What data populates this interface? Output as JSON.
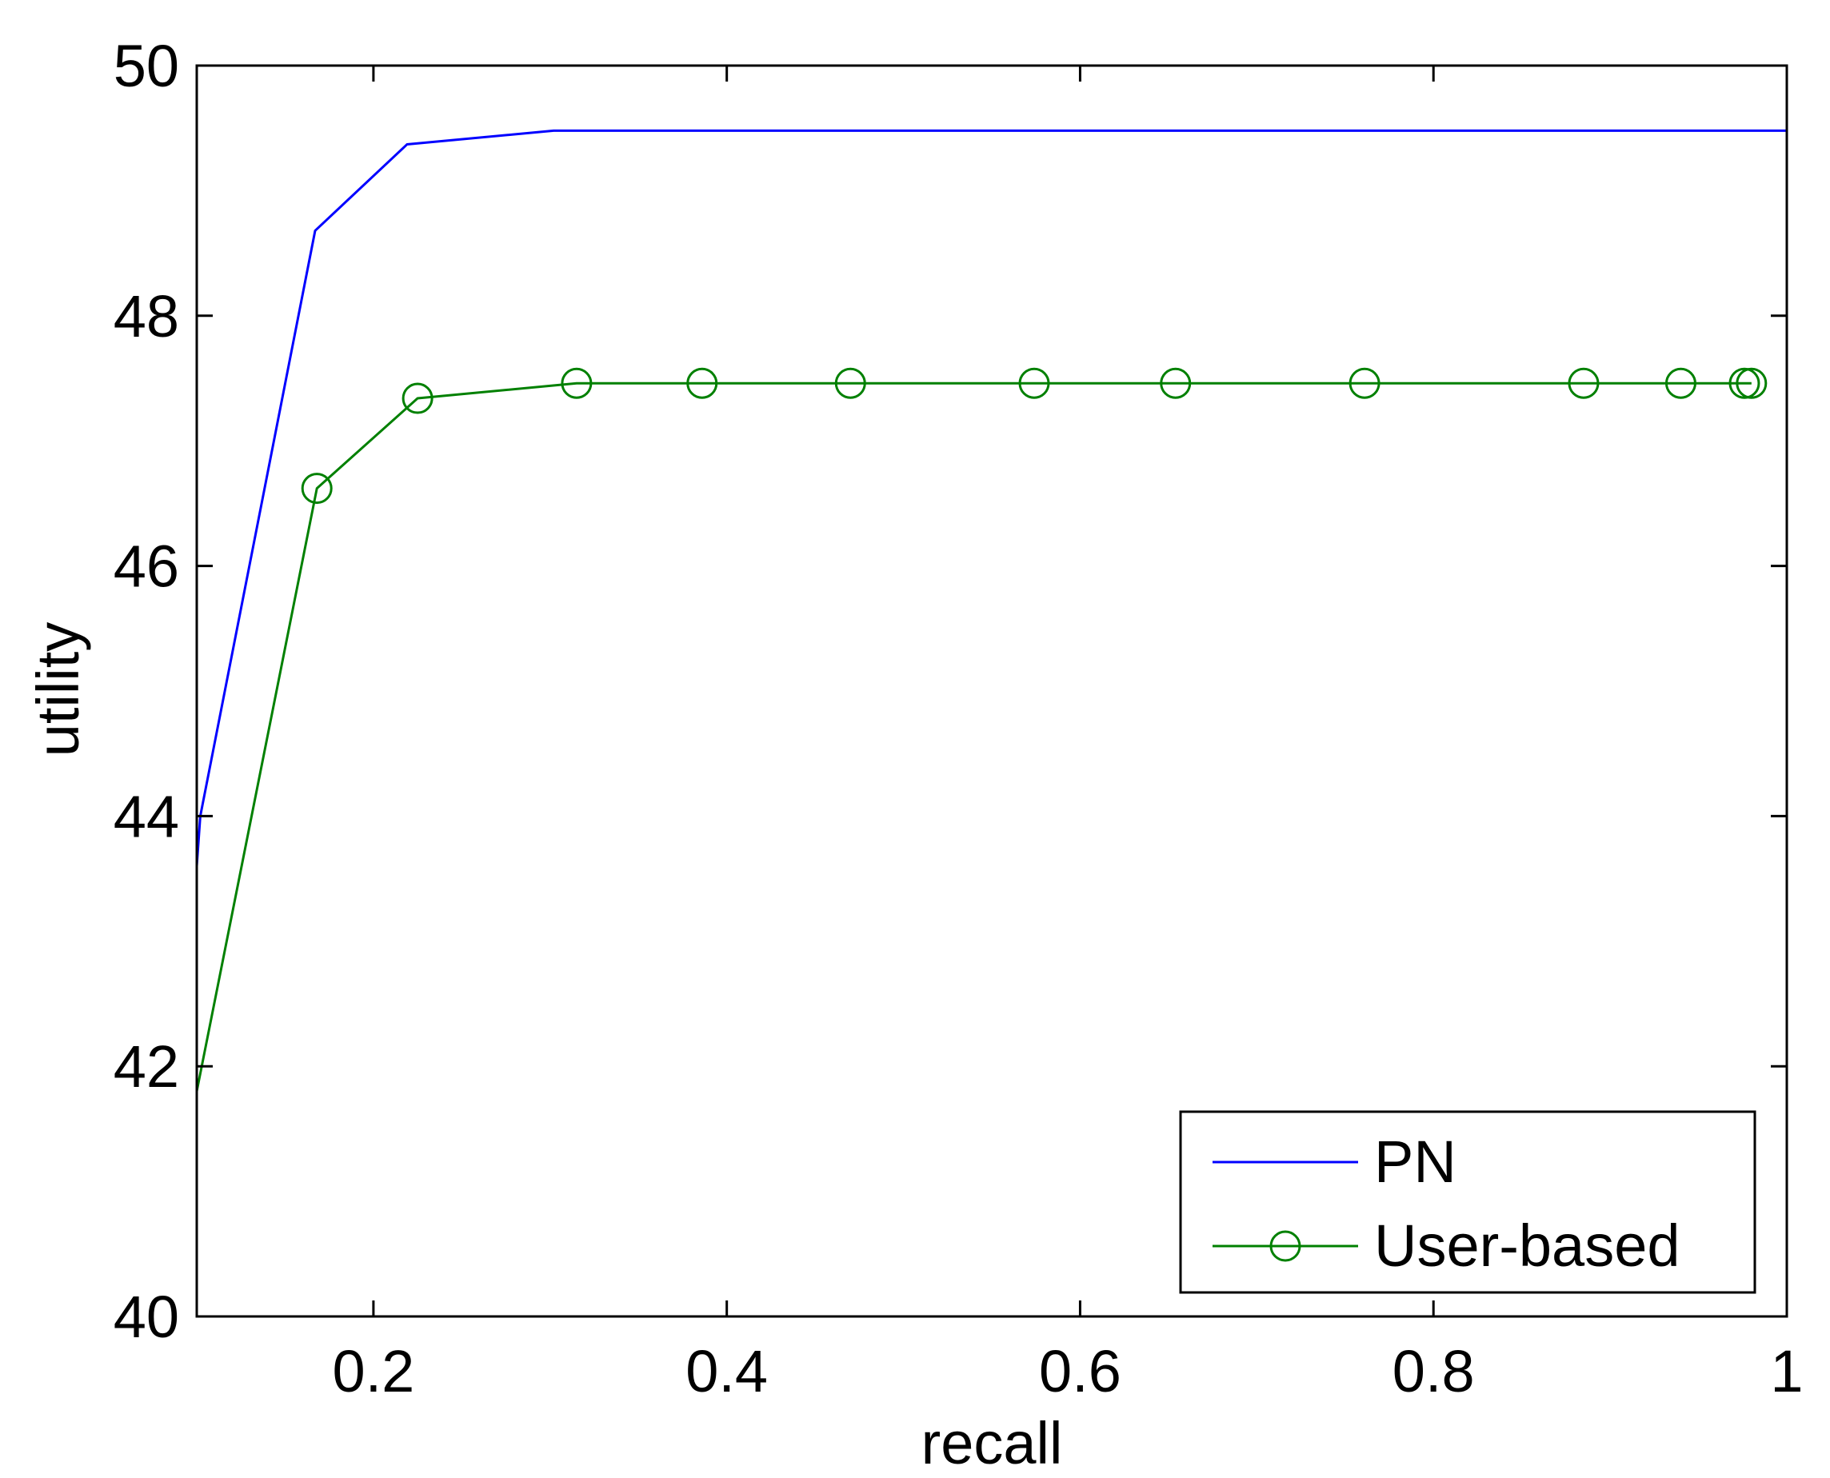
{
  "chart_data": {
    "type": "line",
    "xlabel": "recall",
    "ylabel": "utility",
    "xlim": [
      0.1,
      1.0
    ],
    "ylim": [
      40,
      50
    ],
    "xticks": [
      {
        "value": 0.2,
        "label": "0.2"
      },
      {
        "value": 0.4,
        "label": "0.4"
      },
      {
        "value": 0.6,
        "label": "0.6"
      },
      {
        "value": 0.8,
        "label": "0.8"
      },
      {
        "value": 1.0,
        "label": "1"
      }
    ],
    "yticks": [
      {
        "value": 40,
        "label": "40"
      },
      {
        "value": 42,
        "label": "42"
      },
      {
        "value": 44,
        "label": "44"
      },
      {
        "value": 46,
        "label": "46"
      },
      {
        "value": 48,
        "label": "48"
      },
      {
        "value": 50,
        "label": "50"
      }
    ],
    "grid": false,
    "legend_position": "bottom-right",
    "series": [
      {
        "name": "PN",
        "color": "#0000ff",
        "marker": "none",
        "x": [
          0.1,
          0.102,
          0.167,
          0.219,
          0.302,
          0.36,
          1.0
        ],
        "y": [
          43.6,
          44.0,
          48.68,
          49.37,
          49.48,
          49.48,
          49.48
        ]
      },
      {
        "name": "User-based",
        "color": "#008000",
        "marker": "circle",
        "x": [
          0.1,
          0.168,
          0.225,
          0.315,
          0.386,
          0.47,
          0.574,
          0.654,
          0.761,
          0.885,
          0.94,
          0.976,
          0.98
        ],
        "y": [
          41.8,
          46.62,
          47.34,
          47.46,
          47.46,
          47.46,
          47.46,
          47.46,
          47.46,
          47.46,
          47.46,
          47.46,
          47.46
        ]
      }
    ]
  }
}
